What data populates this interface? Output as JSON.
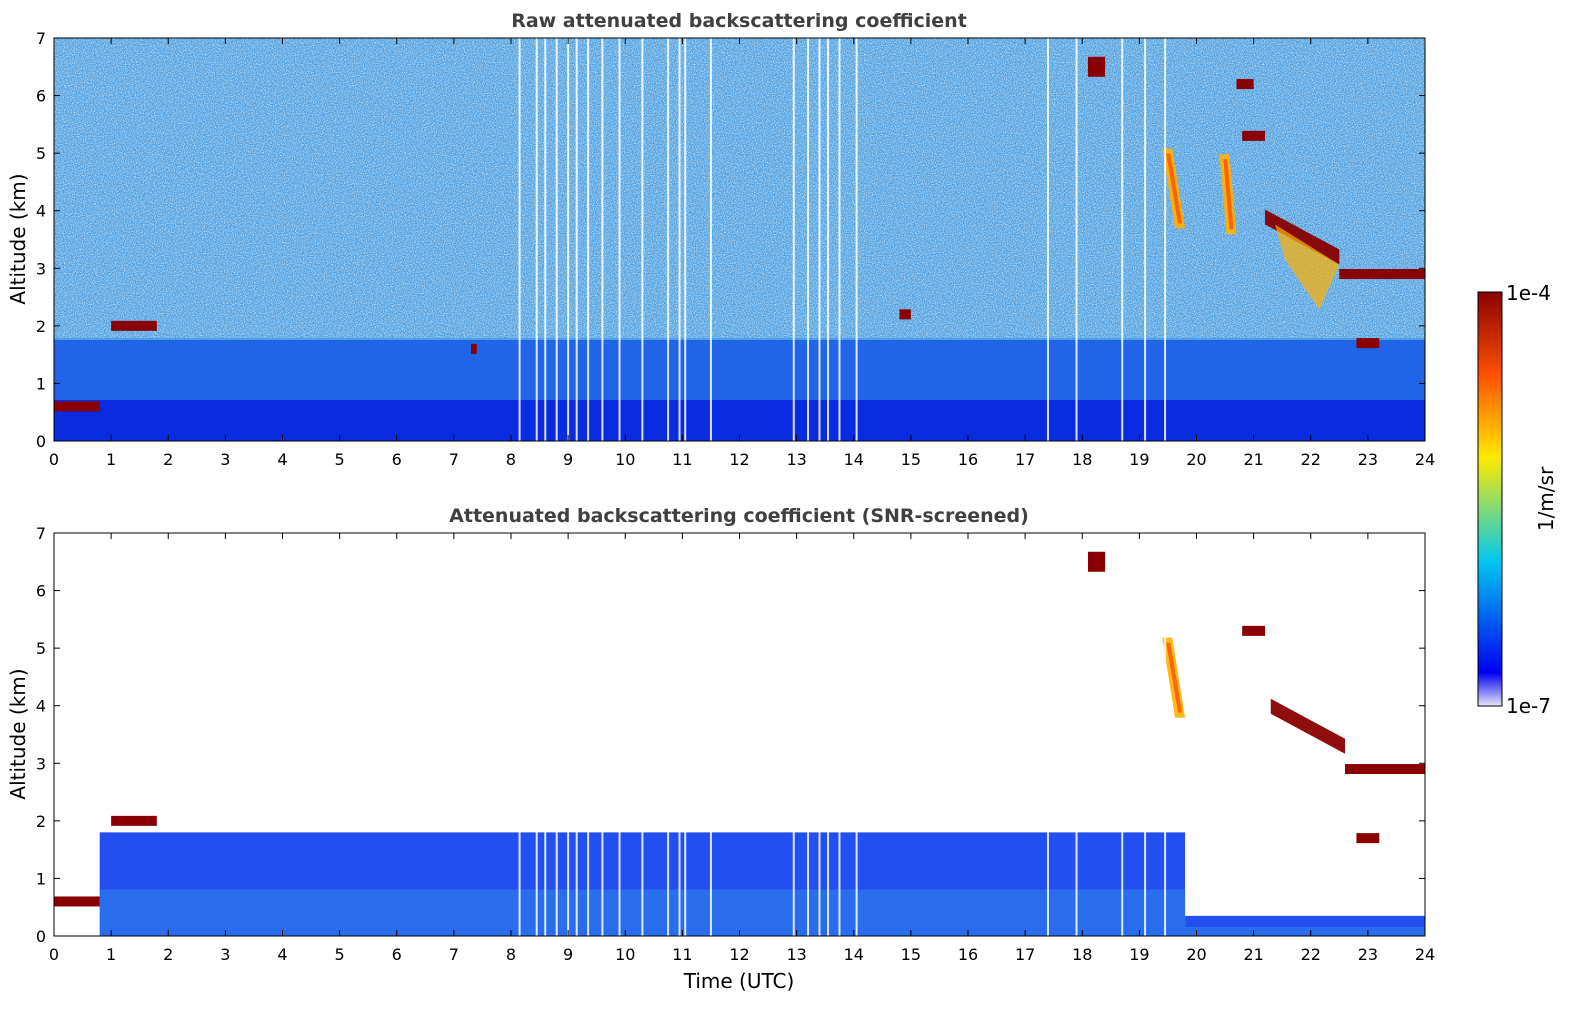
{
  "chart_data": [
    {
      "type": "heatmap",
      "title": "Raw attenuated backscattering coefficient",
      "xlabel": "",
      "ylabel": "Altitude (km)",
      "xlim": [
        0,
        24
      ],
      "ylim": [
        0,
        7
      ],
      "x_ticks": [
        "0",
        "1",
        "2",
        "3",
        "4",
        "5",
        "6",
        "7",
        "8",
        "9",
        "10",
        "11",
        "12",
        "13",
        "14",
        "15",
        "16",
        "17",
        "18",
        "19",
        "20",
        "21",
        "22",
        "23",
        "24"
      ],
      "y_ticks": [
        "0",
        "1",
        "2",
        "3",
        "4",
        "5",
        "6",
        "7"
      ],
      "features": [
        {
          "feature": "low cloud layer",
          "time_start": 0.0,
          "time_end": 0.8,
          "altitude_km": 0.6,
          "level": "max"
        },
        {
          "feature": "cloud layer",
          "time_start": 1.0,
          "time_end": 1.8,
          "altitude_km": 2.0,
          "level": "max"
        },
        {
          "feature": "cloud patch",
          "time_start": 7.3,
          "time_end": 7.4,
          "altitude_km": 1.6,
          "level": "max"
        },
        {
          "feature": "cloud patch",
          "time_start": 14.8,
          "time_end": 15.0,
          "altitude_km": 2.2,
          "level": "max"
        },
        {
          "feature": "high cloud",
          "time_start": 18.1,
          "time_end": 18.4,
          "altitude_km": 6.5,
          "level": "max"
        },
        {
          "feature": "cloud",
          "time_start": 20.7,
          "time_end": 21.0,
          "altitude_km": 6.2,
          "level": "max"
        },
        {
          "feature": "cloud",
          "time_start": 20.8,
          "time_end": 21.2,
          "altitude_km": 5.3,
          "level": "max"
        },
        {
          "feature": "precipitation streak",
          "time_start": 19.4,
          "time_end": 19.8,
          "altitude_km": 4.3,
          "level": "high"
        },
        {
          "feature": "precipitation streak",
          "time_start": 20.4,
          "time_end": 20.7,
          "altitude_km": 4.2,
          "level": "high"
        },
        {
          "feature": "descending cloud layer",
          "time_start": 21.2,
          "time_end": 22.5,
          "altitude_km": 3.5,
          "level": "max"
        },
        {
          "feature": "cloud layer",
          "time_start": 22.5,
          "time_end": 24.0,
          "altitude_km": 2.9,
          "level": "max"
        },
        {
          "feature": "cloud layer",
          "time_start": 22.8,
          "time_end": 23.2,
          "altitude_km": 1.7,
          "level": "max"
        }
      ]
    },
    {
      "type": "heatmap",
      "title": "Attenuated backscattering coefficient (SNR-screened)",
      "xlabel": "Time (UTC)",
      "ylabel": "Altitude (km)",
      "xlim": [
        0,
        24
      ],
      "ylim": [
        0,
        7
      ],
      "x_ticks": [
        "0",
        "1",
        "2",
        "3",
        "4",
        "5",
        "6",
        "7",
        "8",
        "9",
        "10",
        "11",
        "12",
        "13",
        "14",
        "15",
        "16",
        "17",
        "18",
        "19",
        "20",
        "21",
        "22",
        "23",
        "24"
      ],
      "y_ticks": [
        "0",
        "1",
        "2",
        "3",
        "4",
        "5",
        "6",
        "7"
      ],
      "features": [
        {
          "feature": "boundary layer",
          "time_start": 0.8,
          "time_end": 19.8,
          "altitude_km": 1.8,
          "level": "low"
        },
        {
          "feature": "residual layer",
          "time_start": 19.8,
          "time_end": 24.0,
          "altitude_km": 0.35,
          "level": "low"
        },
        {
          "feature": "low cloud layer",
          "time_start": 0.0,
          "time_end": 0.8,
          "altitude_km": 0.6,
          "level": "max"
        },
        {
          "feature": "cloud layer",
          "time_start": 1.0,
          "time_end": 1.8,
          "altitude_km": 2.0,
          "level": "max"
        },
        {
          "feature": "high cloud",
          "time_start": 18.1,
          "time_end": 18.4,
          "altitude_km": 6.5,
          "level": "max"
        },
        {
          "feature": "precipitation streak",
          "time_start": 19.4,
          "time_end": 19.8,
          "altitude_km": 4.4,
          "level": "high"
        },
        {
          "feature": "cloud",
          "time_start": 20.8,
          "time_end": 21.2,
          "altitude_km": 5.3,
          "level": "max"
        },
        {
          "feature": "descending cloud layer",
          "time_start": 21.3,
          "time_end": 22.6,
          "altitude_km": 3.6,
          "level": "max"
        },
        {
          "feature": "cloud layer",
          "time_start": 22.6,
          "time_end": 24.0,
          "altitude_km": 2.9,
          "level": "max"
        },
        {
          "feature": "cloud layer",
          "time_start": 22.8,
          "time_end": 23.2,
          "altitude_km": 1.7,
          "level": "max"
        }
      ]
    }
  ],
  "colorbar": {
    "label": "1/m/sr",
    "min_label": "1e-7",
    "max_label": "1e-4",
    "colors": [
      "#e6e6f8",
      "#0000f0",
      "#00c8f0",
      "#ffea00",
      "#ff5000",
      "#8a0000"
    ]
  }
}
